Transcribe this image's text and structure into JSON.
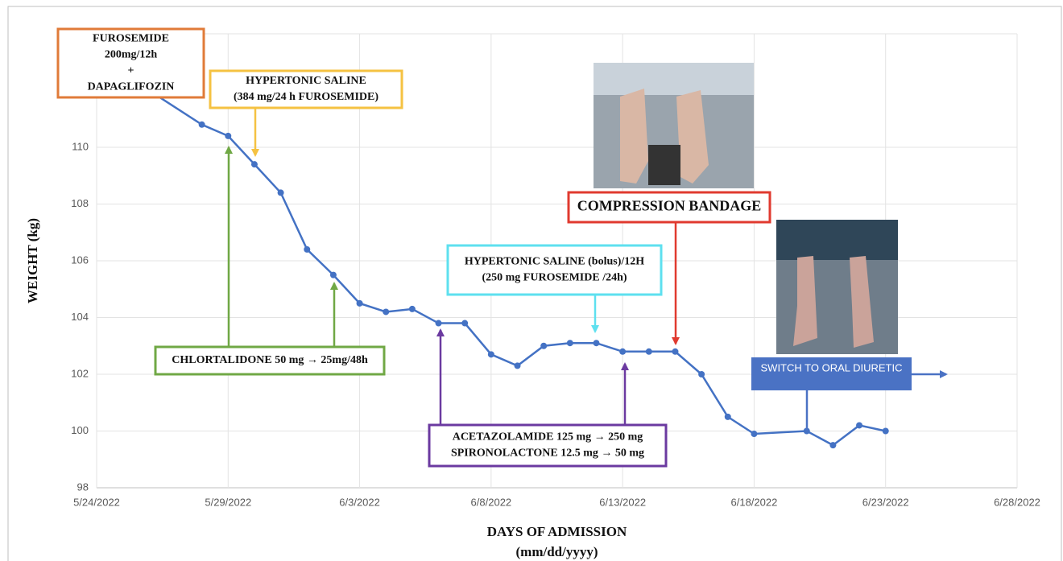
{
  "chart_data": {
    "type": "line",
    "ylabel": "WEIGHT (kg)",
    "xlabel": [
      "DAYS OF ADMISSION",
      "(mm/dd/yyyy)"
    ],
    "xlim": [
      "5/24/2022",
      "6/28/2022"
    ],
    "xticks": [
      "5/24/2022",
      "5/29/2022",
      "6/3/2022",
      "6/8/2022",
      "6/13/2022",
      "6/18/2022",
      "6/23/2022",
      "6/28/2022"
    ],
    "ylim": [
      98,
      114
    ],
    "yticks": [
      98,
      100,
      102,
      104,
      106,
      108,
      110
    ],
    "grid": true,
    "series": [
      {
        "color": "#4472c4",
        "x": [
          "5/26/2022",
          "5/28/2022",
          "5/29/2022",
          "5/30/2022",
          "5/31/2022",
          "6/1/2022",
          "6/2/2022",
          "6/3/2022",
          "6/4/2022",
          "6/5/2022",
          "6/6/2022",
          "6/7/2022",
          "6/8/2022",
          "6/9/2022",
          "6/10/2022",
          "6/11/2022",
          "6/12/2022",
          "6/13/2022",
          "6/14/2022",
          "6/15/2022",
          "6/16/2022",
          "6/17/2022",
          "6/18/2022",
          "6/20/2022",
          "6/21/2022",
          "6/22/2022",
          "6/23/2022"
        ],
        "values": [
          112.0,
          110.8,
          110.4,
          109.4,
          108.4,
          106.4,
          105.5,
          104.5,
          104.2,
          104.3,
          103.8,
          103.8,
          102.7,
          102.3,
          103.0,
          103.1,
          103.1,
          102.8,
          102.8,
          102.8,
          102.0,
          100.5,
          99.9,
          100.0,
          99.5,
          100.2,
          100.0
        ]
      }
    ],
    "annotations": [
      {
        "lines": [
          "FUROSEMIDE",
          "200mg/12h",
          "+",
          "DAPAGLIFOZIN"
        ],
        "color": "#e07b39"
      },
      {
        "lines": [
          "HYPERTONIC SALINE",
          "(384 mg/24 h FUROSEMIDE)"
        ],
        "color": "#f5c242"
      },
      {
        "lines": [
          "CHLORTALIDONE 50 mg → 25mg/48h"
        ],
        "color": "#70a845"
      },
      {
        "lines": [
          "HYPERTONIC SALINE (bolus)/12H",
          "(250 mg FUROSEMIDE /24h)"
        ],
        "color": "#5ee0ef"
      },
      {
        "lines": [
          "COMPRESSION BANDAGE"
        ],
        "color": "#e03a2f"
      },
      {
        "lines": [
          "ACETAZOLAMIDE 125 mg → 250 mg",
          "SPIRONOLACTONE 12.5 mg → 50 mg"
        ],
        "color": "#6b3aa0"
      },
      {
        "lines": [
          "SWITCH TO ORAL DIURETIC"
        ],
        "color": "#4a72c4"
      }
    ]
  }
}
